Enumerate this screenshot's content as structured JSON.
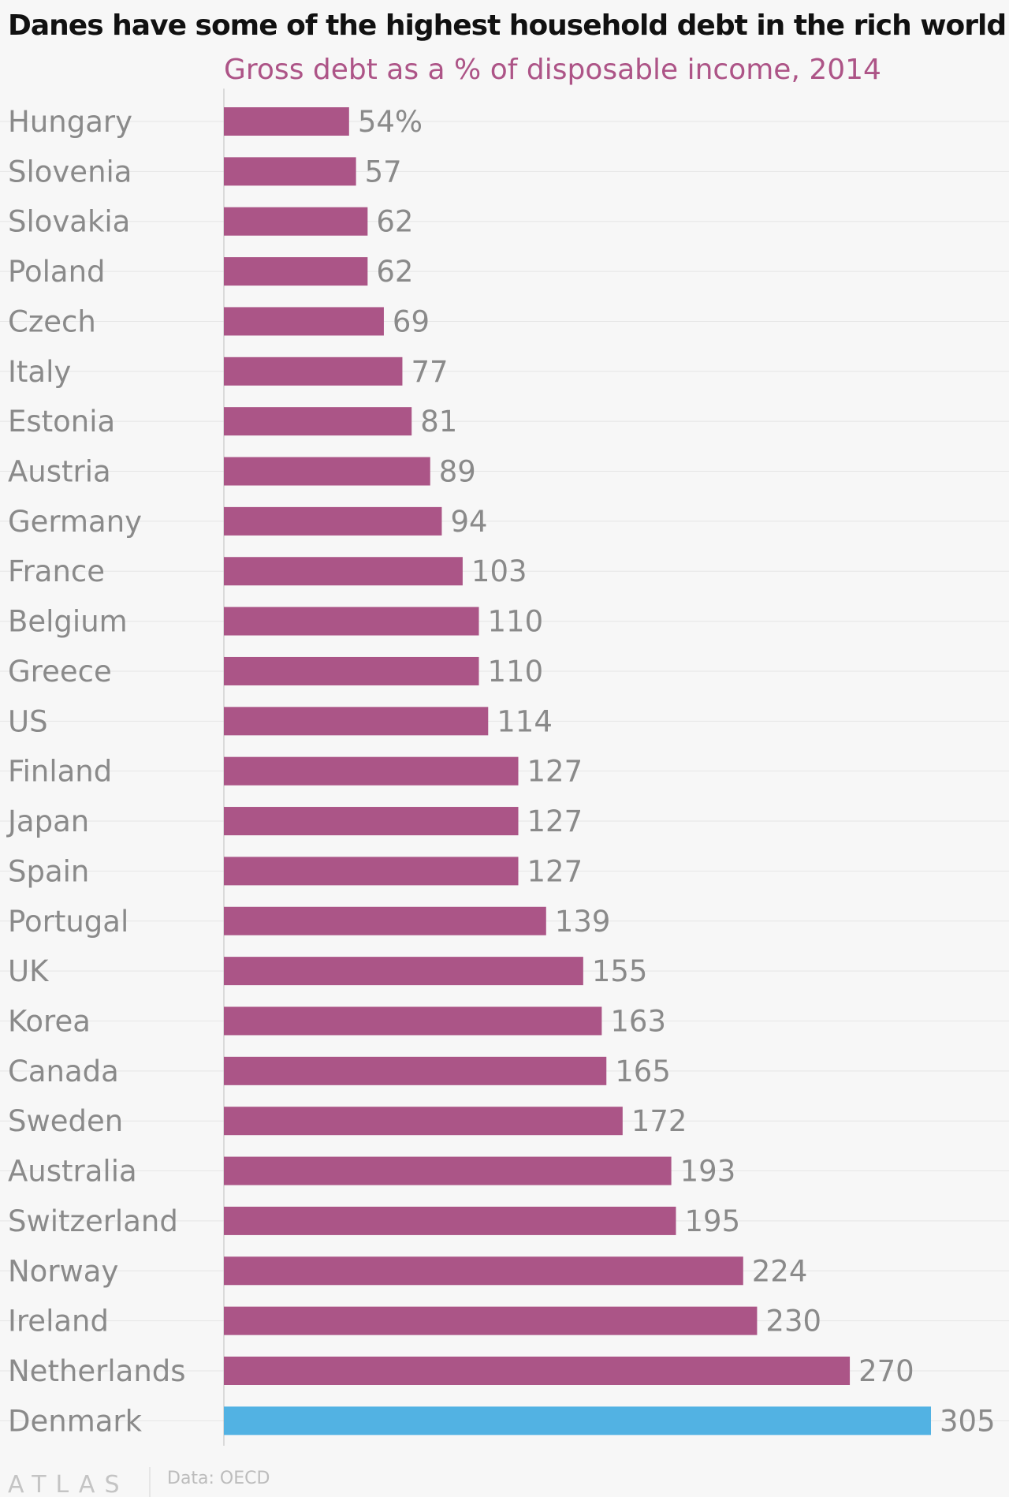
{
  "chart_data": {
    "type": "bar",
    "orientation": "horizontal",
    "title": "Danes have some of the highest household debt in the rich world",
    "subtitle": "Gross debt as a % of disposable income, 2014",
    "categories": [
      "Hungary",
      "Slovenia",
      "Slovakia",
      "Poland",
      "Czech",
      "Italy",
      "Estonia",
      "Austria",
      "Germany",
      "France",
      "Belgium",
      "Greece",
      "US",
      "Finland",
      "Japan",
      "Spain",
      "Portugal",
      "UK",
      "Korea",
      "Canada",
      "Sweden",
      "Australia",
      "Switzerland",
      "Norway",
      "Ireland",
      "Netherlands",
      "Denmark"
    ],
    "values": [
      54,
      57,
      62,
      62,
      69,
      77,
      81,
      89,
      94,
      103,
      110,
      110,
      114,
      127,
      127,
      127,
      139,
      155,
      163,
      165,
      172,
      193,
      195,
      224,
      230,
      270,
      305
    ],
    "value_labels": [
      "54%",
      "57",
      "62",
      "62",
      "69",
      "77",
      "81",
      "89",
      "94",
      "103",
      "110",
      "110",
      "114",
      "127",
      "127",
      "127",
      "139",
      "155",
      "163",
      "165",
      "172",
      "193",
      "195",
      "224",
      "230",
      "270",
      "305"
    ],
    "xlim": [
      0,
      305
    ],
    "grid": true,
    "colors": {
      "bar": "#ab5587",
      "highlight": "#52b2e3",
      "subtitle": "#ad5487"
    },
    "highlight_category": "Denmark"
  },
  "footer": {
    "brand": "ATLAS",
    "source": "Data: OECD"
  }
}
